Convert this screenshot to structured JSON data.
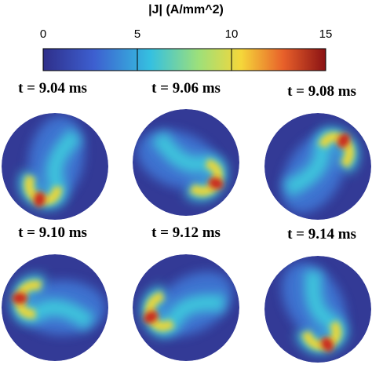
{
  "colorbar": {
    "title": "|J|  (A/mm^2)",
    "lim": [
      0,
      15
    ],
    "ticks": [
      0,
      5,
      10,
      15
    ]
  },
  "panels": [
    {
      "label": "t = 9.04 ms"
    },
    {
      "label": "t = 9.06 ms"
    },
    {
      "label": "t = 9.08 ms"
    },
    {
      "label": "t = 9.10 ms"
    },
    {
      "label": "t = 9.12 ms"
    },
    {
      "label": "t = 9.14 ms"
    }
  ]
}
